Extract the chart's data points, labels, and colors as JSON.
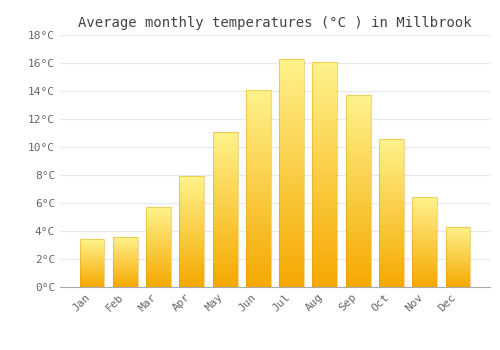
{
  "title": "Average monthly temperatures (°C ) in Millbrook",
  "months": [
    "Jan",
    "Feb",
    "Mar",
    "Apr",
    "May",
    "Jun",
    "Jul",
    "Aug",
    "Sep",
    "Oct",
    "Nov",
    "Dec"
  ],
  "values": [
    3.4,
    3.6,
    5.7,
    7.9,
    11.1,
    14.1,
    16.3,
    16.1,
    13.7,
    10.6,
    6.4,
    4.3
  ],
  "bar_color_bottom": "#F5A800",
  "bar_color_top": "#FFE680",
  "ylim": [
    0,
    18
  ],
  "yticks": [
    0,
    2,
    4,
    6,
    8,
    10,
    12,
    14,
    16,
    18
  ],
  "ytick_labels": [
    "0°C",
    "2°C",
    "4°C",
    "6°C",
    "8°C",
    "10°C",
    "12°C",
    "14°C",
    "16°C",
    "18°C"
  ],
  "background_color": "#FFFFFF",
  "grid_color": "#E8E8E8",
  "title_fontsize": 10,
  "tick_fontsize": 8
}
